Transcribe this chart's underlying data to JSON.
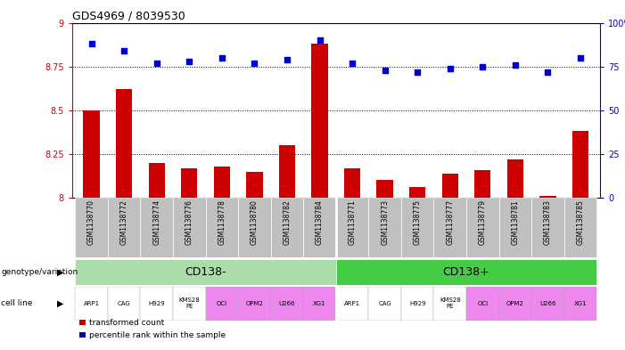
{
  "title": "GDS4969 / 8039530",
  "samples": [
    "GSM1138770",
    "GSM1138772",
    "GSM1138774",
    "GSM1138776",
    "GSM1138778",
    "GSM1138780",
    "GSM1138782",
    "GSM1138784",
    "GSM1138771",
    "GSM1138773",
    "GSM1138775",
    "GSM1138777",
    "GSM1138779",
    "GSM1138781",
    "GSM1138783",
    "GSM1138785"
  ],
  "red_values": [
    8.5,
    8.62,
    8.2,
    8.17,
    8.18,
    8.15,
    8.3,
    8.88,
    8.17,
    8.1,
    8.06,
    8.14,
    8.16,
    8.22,
    8.01,
    8.38
  ],
  "blue_values": [
    88,
    84,
    77,
    78,
    80,
    77,
    79,
    90,
    77,
    73,
    72,
    74,
    75,
    76,
    72,
    80
  ],
  "ylim_left": [
    8.0,
    9.0
  ],
  "ylim_right": [
    0,
    100
  ],
  "yticks_left": [
    8.0,
    8.25,
    8.5,
    8.75,
    9.0
  ],
  "yticks_right": [
    0,
    25,
    50,
    75,
    100
  ],
  "hlines": [
    8.25,
    8.5,
    8.75
  ],
  "group1_label": "CD138-",
  "group2_label": "CD138+",
  "group1_color": "#aaddaa",
  "group2_color": "#44cc44",
  "cell_line_labels": [
    "ARP1",
    "CAG",
    "H929",
    "KMS28\nPE",
    "OCI",
    "OPM2",
    "U266",
    "XG1",
    "ARP1",
    "CAG",
    "H929",
    "KMS28\nPE",
    "OCI",
    "OPM2",
    "U266",
    "XG1"
  ],
  "cell_line_colors": [
    "#ffffff",
    "#ffffff",
    "#ffffff",
    "#ffffff",
    "#ee88ee",
    "#ee88ee",
    "#ee88ee",
    "#ee88ee",
    "#ffffff",
    "#ffffff",
    "#ffffff",
    "#ffffff",
    "#ee88ee",
    "#ee88ee",
    "#ee88ee",
    "#ee88ee"
  ],
  "bar_color": "#cc0000",
  "dot_color": "#0000cc",
  "legend_red": "transformed count",
  "legend_blue": "percentile rank within the sample",
  "left_axis_color": "#cc0000",
  "right_axis_color": "#0000cc",
  "background_color": "#ffffff",
  "sample_bg_color": "#c0c0c0"
}
